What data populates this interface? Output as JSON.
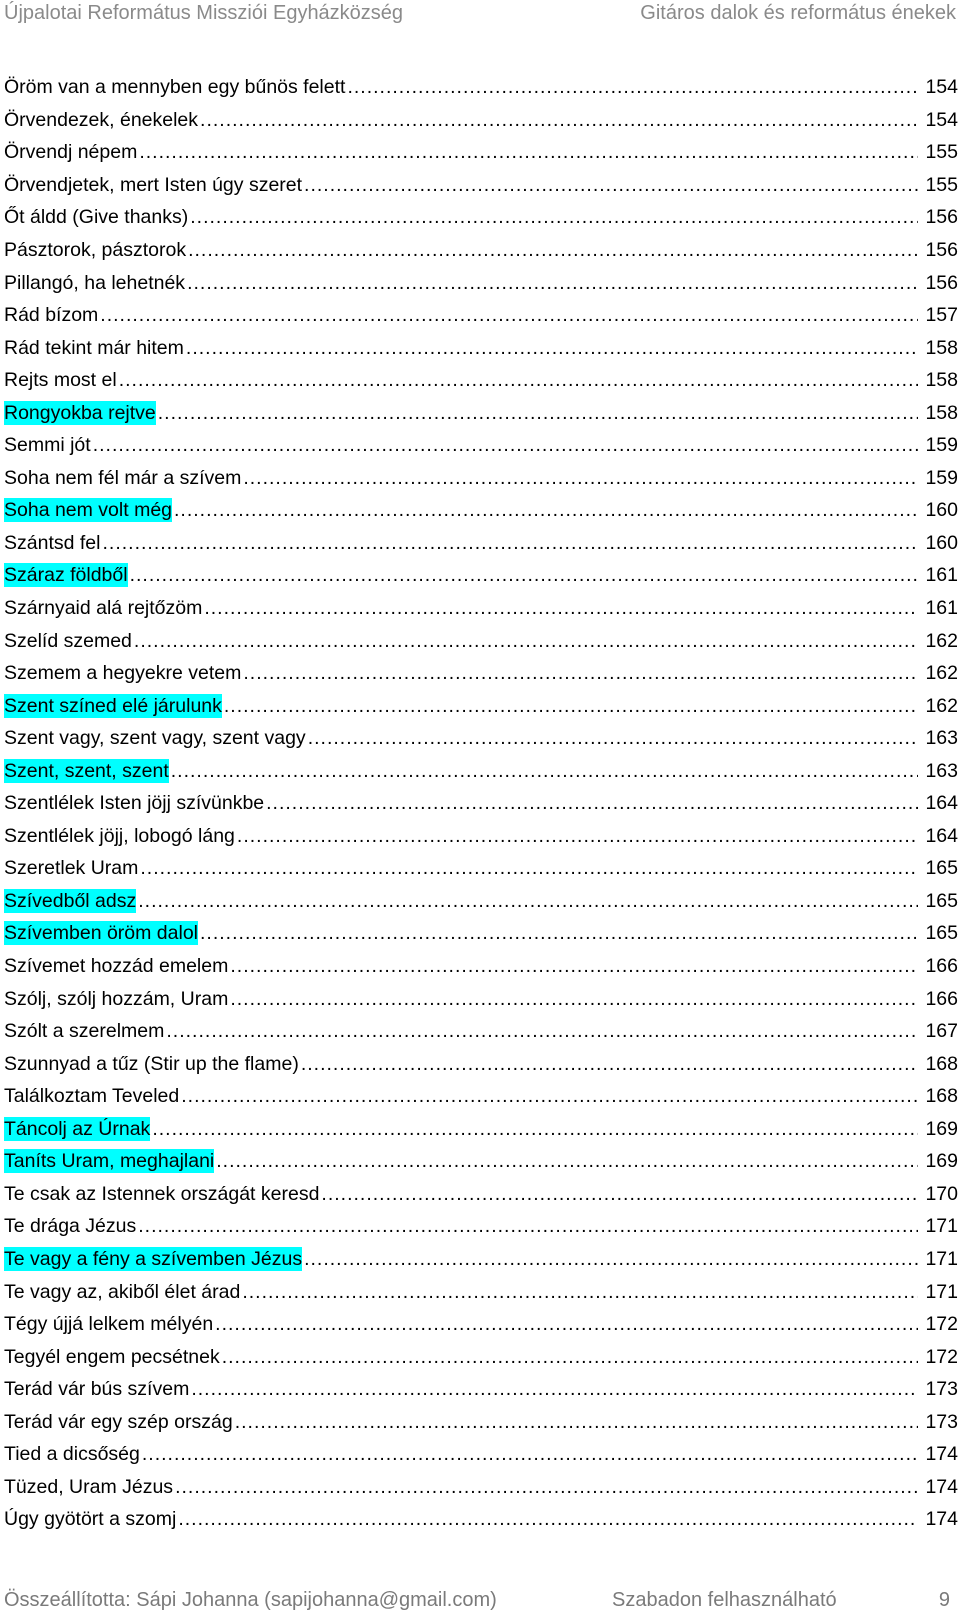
{
  "header": {
    "left": "Újpalotai Református Missziói Egyházközség",
    "right": "Gitáros dalok és református énekek"
  },
  "highlight_color": "#00ffff",
  "toc": [
    {
      "title": "Öröm van a mennyben egy bűnös felett",
      "page": "154",
      "highlight": false
    },
    {
      "title": "Örvendezek, énekelek",
      "page": "154",
      "highlight": false
    },
    {
      "title": "Örvendj népem",
      "page": "155",
      "highlight": false
    },
    {
      "title": "Örvendjetek, mert Isten úgy szeret",
      "page": "155",
      "highlight": false
    },
    {
      "title": "Őt áldd (Give thanks)",
      "page": "156",
      "highlight": false
    },
    {
      "title": "Pásztorok, pásztorok",
      "page": "156",
      "highlight": false
    },
    {
      "title": "Pillangó, ha lehetnék",
      "page": "156",
      "highlight": false
    },
    {
      "title": "Rád bízom",
      "page": "157",
      "highlight": false
    },
    {
      "title": "Rád tekint már hitem",
      "page": "158",
      "highlight": false
    },
    {
      "title": "Rejts most el",
      "page": "158",
      "highlight": false
    },
    {
      "title": "Rongyokba rejtve",
      "page": "158",
      "highlight": true
    },
    {
      "title": "Semmi jót",
      "page": "159",
      "highlight": false
    },
    {
      "title": "Soha nem fél már a szívem",
      "page": "159",
      "highlight": false
    },
    {
      "title": "Soha nem volt még",
      "page": "160",
      "highlight": true
    },
    {
      "title": "Szántsd fel",
      "page": "160",
      "highlight": false
    },
    {
      "title": "Száraz földből",
      "page": "161",
      "highlight": true
    },
    {
      "title": "Szárnyaid alá rejtőzöm",
      "page": "161",
      "highlight": false
    },
    {
      "title": "Szelíd szemed",
      "page": "162",
      "highlight": false
    },
    {
      "title": "Szemem a hegyekre vetem",
      "page": "162",
      "highlight": false
    },
    {
      "title": "Szent színed elé járulunk",
      "page": "162",
      "highlight": true
    },
    {
      "title": "Szent vagy, szent vagy, szent vagy",
      "page": "163",
      "highlight": false
    },
    {
      "title": "Szent, szent, szent",
      "page": "163",
      "highlight": true
    },
    {
      "title": "Szentlélek Isten jöjj szívünkbe",
      "page": "164",
      "highlight": false
    },
    {
      "title": "Szentlélek jöjj, lobogó láng",
      "page": "164",
      "highlight": false
    },
    {
      "title": "Szeretlek Uram",
      "page": "165",
      "highlight": false
    },
    {
      "title": "Szívedből adsz",
      "page": "165",
      "highlight": true
    },
    {
      "title": "Szívemben öröm dalol",
      "page": "165",
      "highlight": true
    },
    {
      "title": "Szívemet hozzád emelem",
      "page": "166",
      "highlight": false
    },
    {
      "title": "Szólj, szólj hozzám, Uram",
      "page": "166",
      "highlight": false
    },
    {
      "title": "Szólt a szerelmem",
      "page": "167",
      "highlight": false
    },
    {
      "title": "Szunnyad a tűz (Stir up the flame)",
      "page": "168",
      "highlight": false
    },
    {
      "title": "Találkoztam Teveled",
      "page": "168",
      "highlight": false
    },
    {
      "title": "Táncolj az Úrnak",
      "page": "169",
      "highlight": true
    },
    {
      "title": "Taníts Uram, meghajlani",
      "page": "169",
      "highlight": true
    },
    {
      "title": "Te csak az Istennek országát keresd",
      "page": "170",
      "highlight": false
    },
    {
      "title": "Te drága Jézus",
      "page": "171",
      "highlight": false
    },
    {
      "title": "Te vagy a fény a szívemben Jézus",
      "page": "171",
      "highlight": true
    },
    {
      "title": "Te vagy az, akiből élet árad",
      "page": "171",
      "highlight": false
    },
    {
      "title": "Tégy újjá lelkem mélyén",
      "page": "172",
      "highlight": false
    },
    {
      "title": "Tegyél engem pecsétnek",
      "page": "172",
      "highlight": false
    },
    {
      "title": "Terád vár bús szívem",
      "page": "173",
      "highlight": false
    },
    {
      "title": "Terád vár egy szép ország",
      "page": "173",
      "highlight": false
    },
    {
      "title": "Tied a dicsőség",
      "page": "174",
      "highlight": false
    },
    {
      "title": "Tüzed, Uram Jézus",
      "page": "174",
      "highlight": false
    },
    {
      "title": "Úgy gyötört a szomj",
      "page": "174",
      "highlight": false
    }
  ],
  "footer": {
    "left": "Összeállította: Sápi Johanna (sapijohanna@gmail.com)",
    "middle": "Szabadon felhasználható",
    "page_number": "9"
  }
}
